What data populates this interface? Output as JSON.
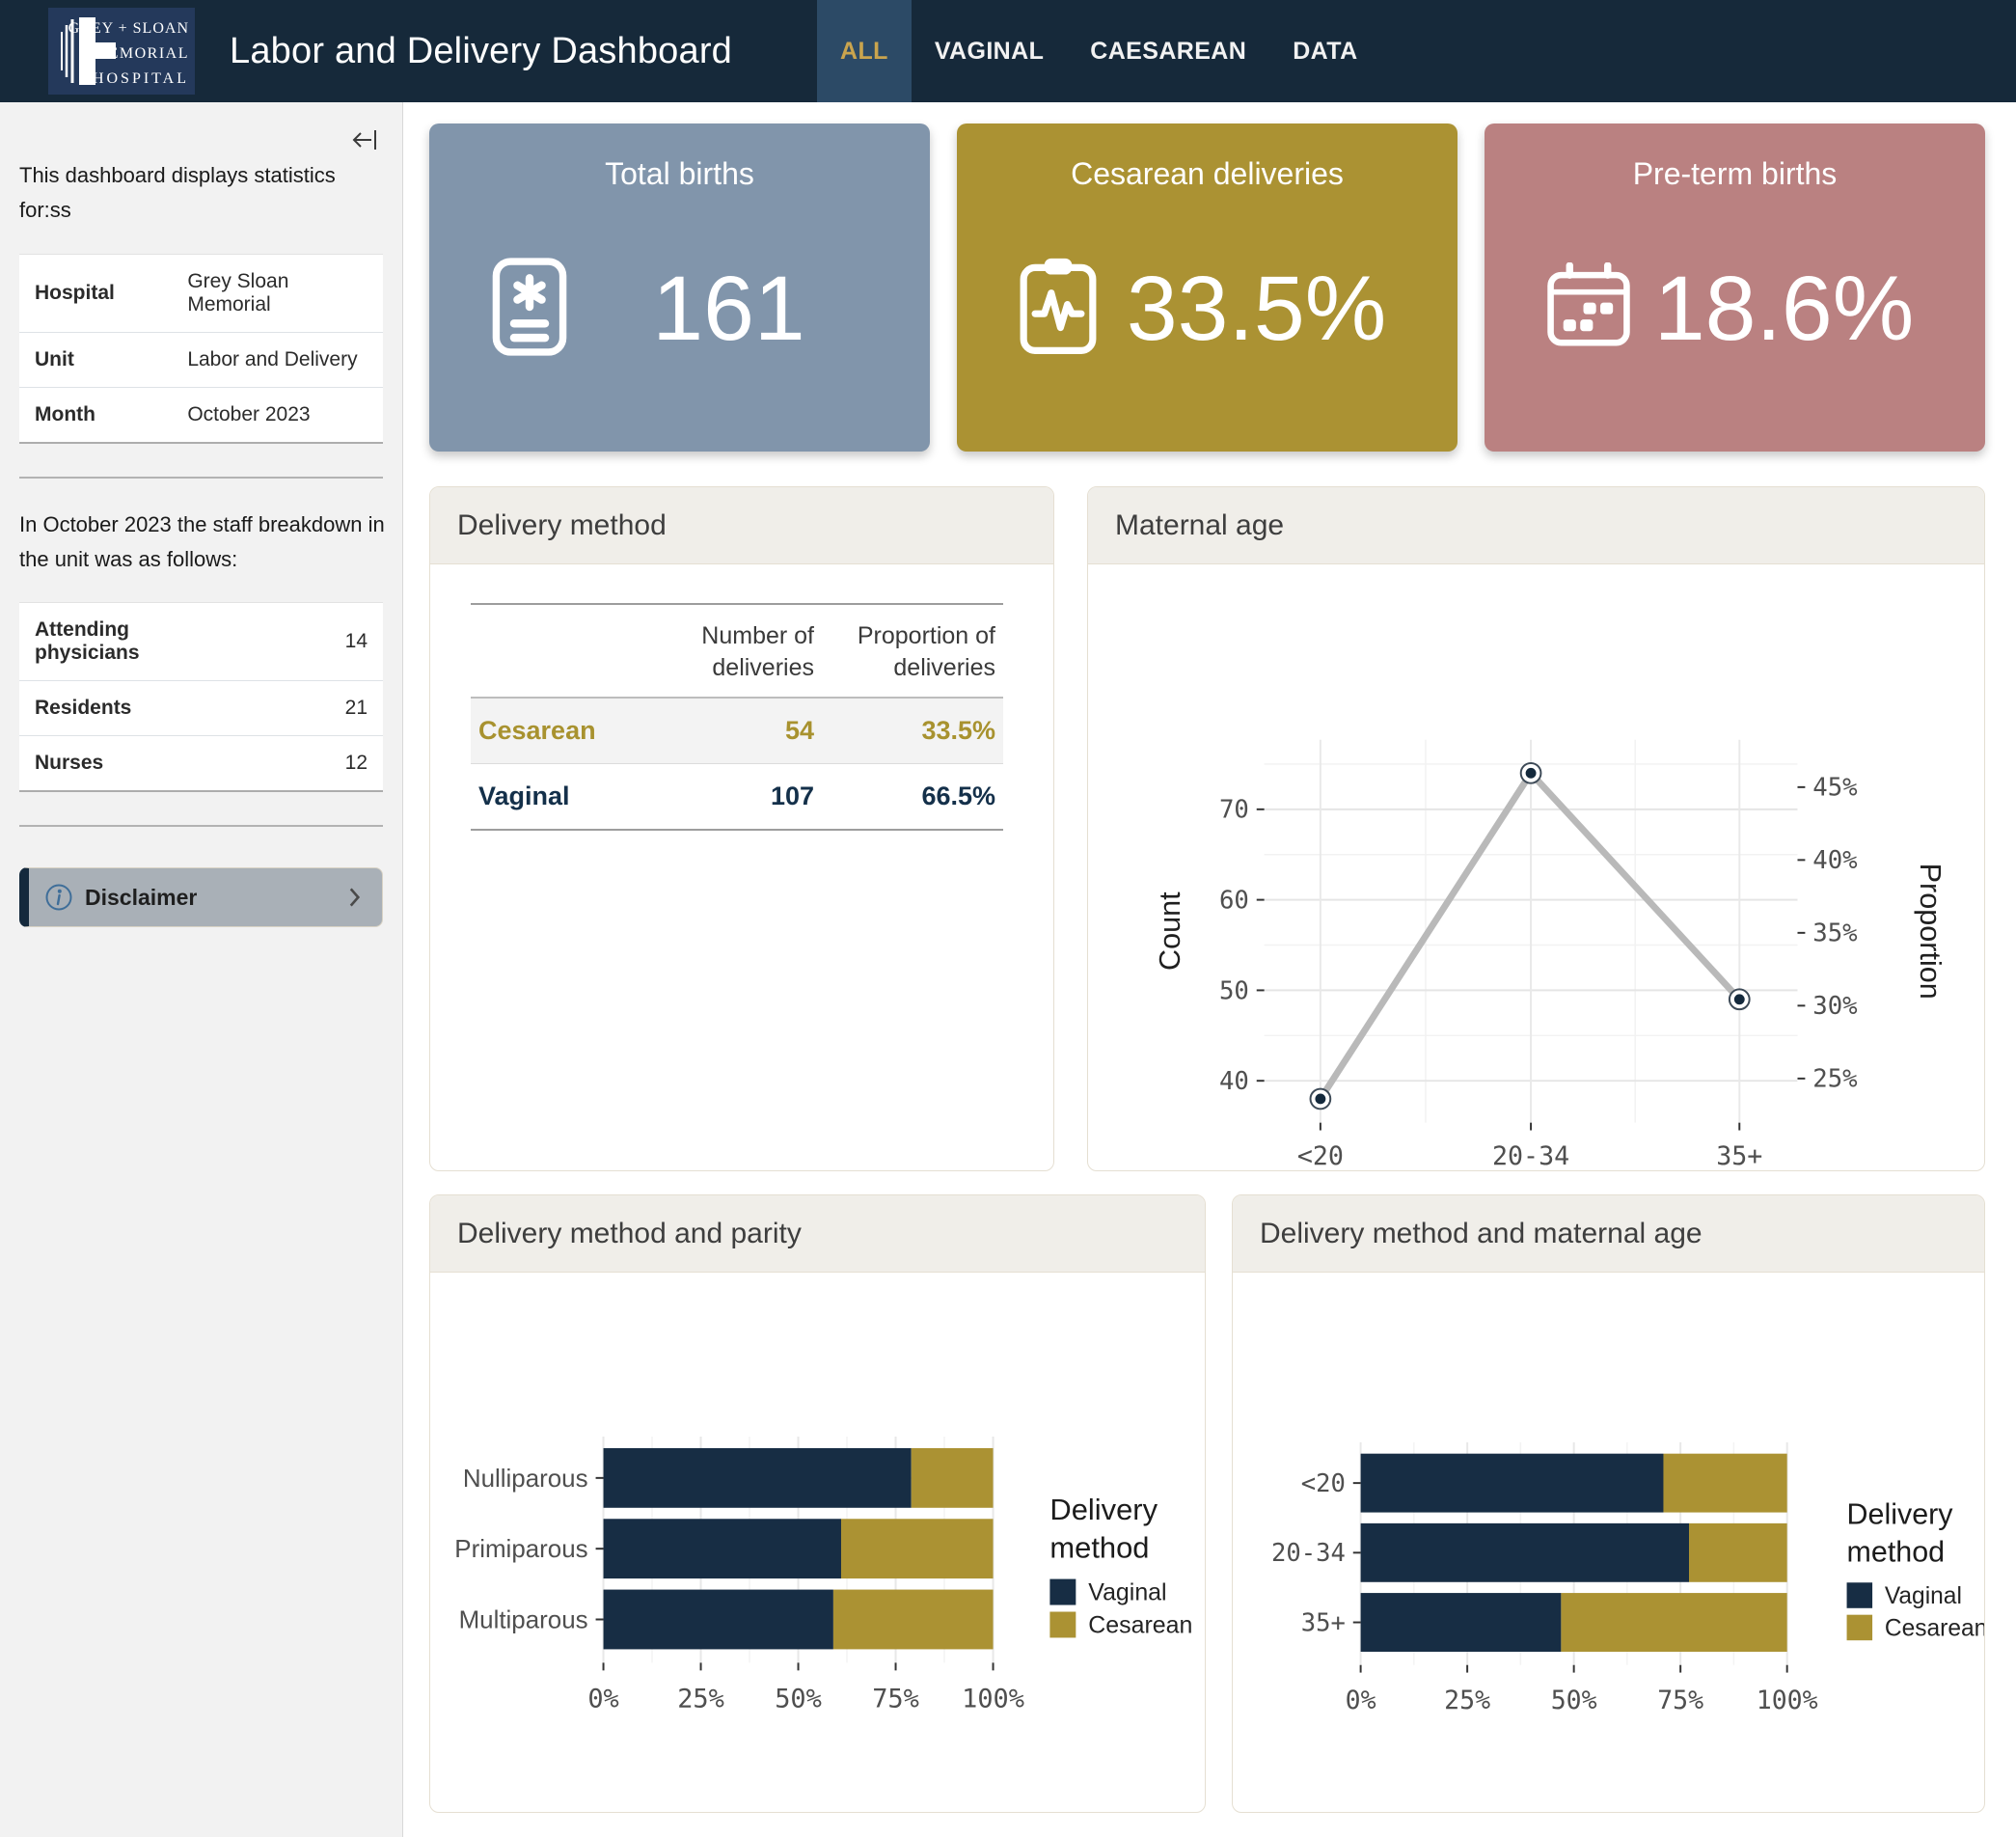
{
  "navbar": {
    "logo": {
      "lines": [
        "GREY + SLOAN",
        "MEMORIAL",
        "HOSPITAL"
      ]
    },
    "title": "Labor and Delivery Dashboard",
    "tabs": [
      {
        "label": "ALL",
        "active": true
      },
      {
        "label": "VAGINAL",
        "active": false
      },
      {
        "label": "CAESAREAN",
        "active": false
      },
      {
        "label": "DATA",
        "active": false
      }
    ],
    "colors": {
      "bg": "#16293A",
      "active_tab_bg": "#2C4A66",
      "active_tab_text": "#C9A44E",
      "logo_bg": "#24395B"
    }
  },
  "sidebar": {
    "intro": "This dashboard displays statistics for:ss",
    "info_table": {
      "rows": [
        {
          "label": "Hospital",
          "value": "Grey Sloan Memorial"
        },
        {
          "label": "Unit",
          "value": "Labor and Delivery"
        },
        {
          "label": "Month",
          "value": "October 2023"
        }
      ]
    },
    "staff_intro": "In October 2023 the staff breakdown in the unit was as follows:",
    "staff_table": {
      "rows": [
        {
          "label": "Attending physicians",
          "value": "14"
        },
        {
          "label": "Residents",
          "value": "21"
        },
        {
          "label": "Nurses",
          "value": "12"
        }
      ]
    },
    "disclaimer_label": "Disclaimer"
  },
  "value_boxes": [
    {
      "title": "Total births",
      "value": "161",
      "color": "#8195AB",
      "icon": "file-medical-icon"
    },
    {
      "title": "Cesarean deliveries",
      "value": "33.5%",
      "color": "#AB9233",
      "icon": "clipboard-pulse-icon"
    },
    {
      "title": "Pre-term births",
      "value": "18.6%",
      "color": "#BA8181",
      "icon": "calendar-week-icon"
    }
  ],
  "cards": {
    "delivery_method": {
      "title": "Delivery method",
      "table": {
        "col_headers": [
          "",
          "Number of deliveries",
          "Proportion of deliveries"
        ],
        "rows": [
          {
            "method": "Cesarean",
            "n": "54",
            "prop": "33.5%",
            "color": "#A8922F"
          },
          {
            "method": "Vaginal",
            "n": "107",
            "prop": "66.5%",
            "color": "#14304A"
          }
        ]
      }
    },
    "maternal_age": {
      "title": "Maternal age"
    },
    "parity": {
      "title": "Delivery method and parity"
    },
    "age_method": {
      "title": "Delivery method and maternal age"
    }
  },
  "chart_data": [
    {
      "id": "maternal-age",
      "type": "line",
      "title": "Maternal age",
      "categories": [
        "<20",
        "20-34",
        "35+"
      ],
      "values": [
        38,
        74,
        49
      ],
      "total_births": 161,
      "ylabel": "Count",
      "y2label": "Proportion",
      "yticks": [
        40,
        50,
        60,
        70
      ],
      "y2ticks_percent": [
        25,
        30,
        35,
        40,
        45
      ],
      "ylim": [
        35.5,
        77.5
      ],
      "grid": true,
      "line_color": "#B9B9B9",
      "marker_color": "#14293C"
    },
    {
      "id": "parity",
      "type": "stacked_bar_h",
      "title": "Delivery method and parity",
      "categories": [
        "Nulliparous",
        "Primiparous",
        "Multiparous"
      ],
      "series": [
        {
          "name": "Vaginal",
          "color": "#172D44",
          "values": [
            79,
            61,
            59
          ]
        },
        {
          "name": "Cesarean",
          "color": "#AB9233",
          "values": [
            21,
            39,
            41
          ]
        }
      ],
      "xticks": [
        "0%",
        "25%",
        "50%",
        "75%",
        "100%"
      ],
      "xlim": [
        0,
        100
      ],
      "legend_title": "Delivery method",
      "legend_position": "right"
    },
    {
      "id": "age-method",
      "type": "stacked_bar_h",
      "title": "Delivery method and maternal age",
      "categories": [
        "<20",
        "20-34",
        "35+"
      ],
      "series": [
        {
          "name": "Vaginal",
          "color": "#172D44",
          "values": [
            71,
            77,
            47
          ]
        },
        {
          "name": "Cesarean",
          "color": "#AB9233",
          "values": [
            29,
            23,
            53
          ]
        }
      ],
      "xticks": [
        "0%",
        "25%",
        "50%",
        "75%",
        "100%"
      ],
      "xlim": [
        0,
        100
      ],
      "legend_title": "Delivery method",
      "legend_position": "right"
    }
  ]
}
